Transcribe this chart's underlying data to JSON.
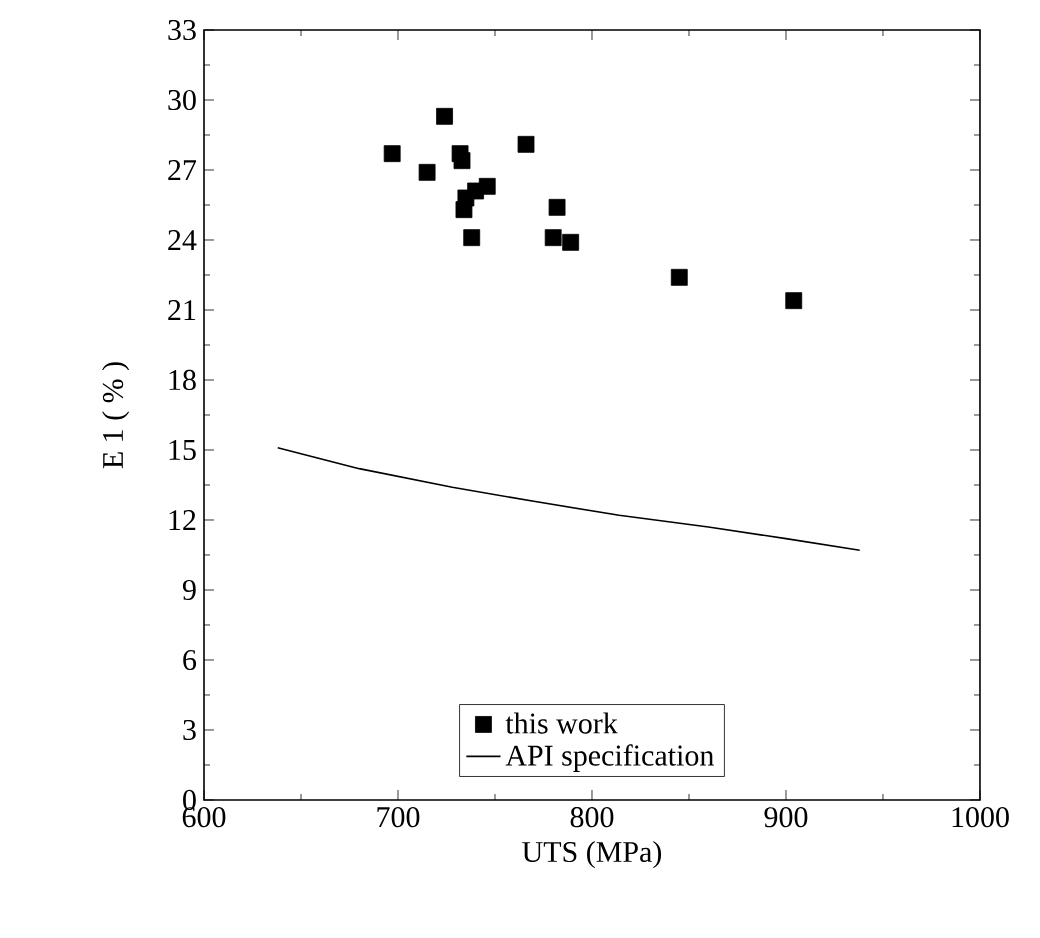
{
  "chart_data": {
    "type": "scatter",
    "xlabel": "UTS (MPa)",
    "ylabel": "E 1 ( % )",
    "xlim": [
      600,
      1000
    ],
    "ylim": [
      0,
      33
    ],
    "xticks": [
      600,
      700,
      800,
      900,
      1000
    ],
    "yticks": [
      0,
      3,
      6,
      9,
      12,
      15,
      18,
      21,
      24,
      27,
      30,
      33
    ],
    "legend": "bottom",
    "grid": false,
    "series": [
      {
        "name": "this work",
        "marker": "square",
        "color": "#000000",
        "x": [
          697,
          715,
          724,
          732,
          733,
          734,
          735,
          738,
          740,
          746,
          766,
          780,
          782,
          789,
          845,
          904
        ],
        "values": [
          27.7,
          26.9,
          29.3,
          27.7,
          27.4,
          25.3,
          25.8,
          24.1,
          26.1,
          26.3,
          28.1,
          24.1,
          25.4,
          23.9,
          22.4,
          21.4
        ]
      },
      {
        "name": "API specification",
        "type": "line",
        "marker": "none",
        "color": "#000000",
        "x": [
          638,
          680,
          728,
          770,
          814,
          860,
          900,
          938
        ],
        "values": [
          15.1,
          14.2,
          13.4,
          12.8,
          12.2,
          11.7,
          11.2,
          10.7
        ]
      }
    ]
  }
}
